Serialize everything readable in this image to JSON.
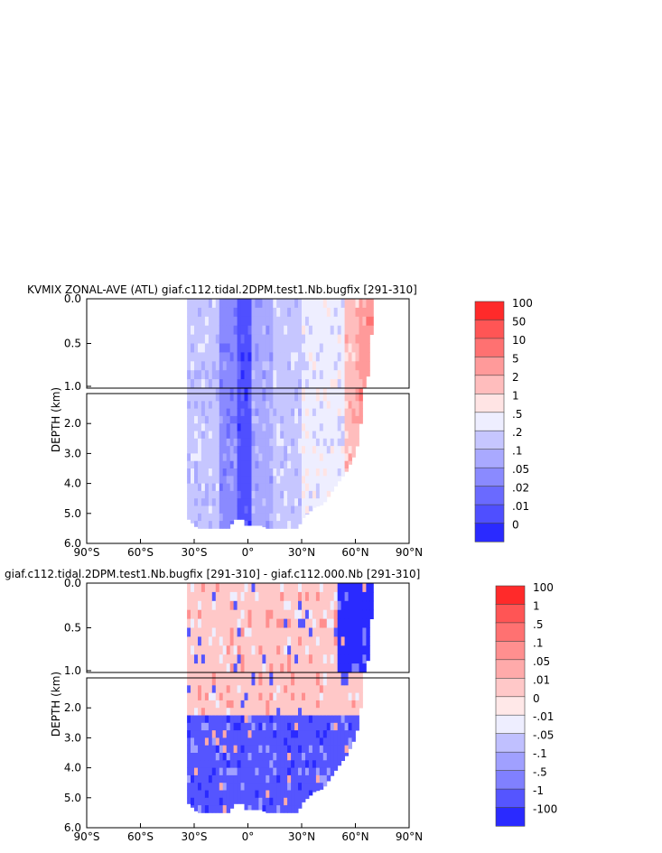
{
  "chart_data": [
    {
      "type": "heatmap",
      "title": "KVMIX ZONAL-AVE (ATL) giaf.c112.tidal.2DPM.test1.Nb.bugfix [291-310]",
      "ylabel": "DEPTH (km)",
      "xticks": [
        "90°S",
        "60°S",
        "30°S",
        "0°",
        "30°N",
        "60°N",
        "90°N"
      ],
      "yticks_upper": [
        "0.0",
        "0.5",
        "1.0"
      ],
      "yticks_lower": [
        "2.0",
        "3.0",
        "4.0",
        "5.0",
        "6.0"
      ],
      "xlim": [
        -90,
        90
      ],
      "ylim_upper_km": [
        0,
        1
      ],
      "ylim_lower_km": [
        1,
        6
      ],
      "colorbar": {
        "labels": [
          "100",
          "50",
          "10",
          "5",
          "2",
          "1",
          ".5",
          ".2",
          ".1",
          ".05",
          ".02",
          ".01",
          "0"
        ],
        "colors": [
          "#ff2a2a",
          "#ff5555",
          "#ff7171",
          "#ff9a9a",
          "#ffbdbd",
          "#ffe4e4",
          "#eeeeff",
          "#c6c6ff",
          "#a9a9ff",
          "#8a8aff",
          "#6a6aff",
          "#4f4fff",
          "#2a2aff"
        ]
      },
      "depth_profile_km": [
        [
          -33,
          5.2
        ],
        [
          -28,
          5.5
        ],
        [
          -10,
          5.5
        ],
        [
          -8,
          5.2
        ],
        [
          -3,
          5.2
        ],
        [
          -1,
          5.4
        ],
        [
          8,
          5.4
        ],
        [
          10,
          5.5
        ],
        [
          28,
          5.5
        ],
        [
          30,
          5.2
        ],
        [
          37,
          4.8
        ],
        [
          42,
          4.7
        ],
        [
          50,
          4.0
        ],
        [
          55,
          3.6
        ],
        [
          60,
          3.0
        ],
        [
          62,
          2.5
        ],
        [
          63,
          2.0
        ],
        [
          64,
          1.5
        ],
        [
          65,
          1.0
        ],
        [
          68,
          0.8
        ],
        [
          70,
          0.0
        ]
      ],
      "bands": [
        {
          "lat": [
            -35,
            -15
          ],
          "class": 7
        },
        {
          "lat": [
            -15,
            -5
          ],
          "class": 9
        },
        {
          "lat": [
            -5,
            3
          ],
          "class": 11
        },
        {
          "lat": [
            3,
            15
          ],
          "class": 8
        },
        {
          "lat": [
            15,
            30
          ],
          "class": 7
        },
        {
          "lat": [
            30,
            45
          ],
          "class": 6
        },
        {
          "lat": [
            45,
            55
          ],
          "class": 6
        },
        {
          "lat": [
            55,
            62
          ],
          "class": 4
        },
        {
          "lat": [
            62,
            70
          ],
          "class": 3
        }
      ]
    },
    {
      "type": "heatmap",
      "title": "giaf.c112.tidal.2DPM.test1.Nb.bugfix [291-310] - giaf.c112.000.Nb [291-310]",
      "ylabel": "DEPTH (km)",
      "xticks": [
        "90°S",
        "60°S",
        "30°S",
        "0°",
        "30°N",
        "60°N",
        "90°N"
      ],
      "yticks_upper": [
        "0.0",
        "0.5",
        "1.0"
      ],
      "yticks_lower": [
        "2.0",
        "3.0",
        "4.0",
        "5.0",
        "6.0"
      ],
      "xlim": [
        -90,
        90
      ],
      "ylim_upper_km": [
        0,
        1
      ],
      "ylim_lower_km": [
        1,
        6
      ],
      "colorbar": {
        "labels": [
          "100",
          "1",
          ".5",
          ".1",
          ".05",
          ".01",
          "0",
          "-.01",
          "-.05",
          "-.1",
          "-.5",
          "-1",
          "-100"
        ],
        "colors": [
          "#ff2a2a",
          "#ff5555",
          "#ff7171",
          "#ff8f8f",
          "#ffaaaa",
          "#ffc8c8",
          "#ffe8e8",
          "#eeeeff",
          "#c0c0ff",
          "#a0a0ff",
          "#8080ff",
          "#5555ff",
          "#2a2aff"
        ]
      },
      "depth_profile_km": [
        [
          -33,
          5.2
        ],
        [
          -28,
          5.5
        ],
        [
          -10,
          5.5
        ],
        [
          -8,
          5.2
        ],
        [
          -3,
          5.2
        ],
        [
          -1,
          5.4
        ],
        [
          8,
          5.4
        ],
        [
          10,
          5.5
        ],
        [
          28,
          5.5
        ],
        [
          30,
          5.2
        ],
        [
          37,
          4.8
        ],
        [
          42,
          4.7
        ],
        [
          50,
          4.0
        ],
        [
          55,
          3.6
        ],
        [
          60,
          3.0
        ],
        [
          62,
          2.5
        ],
        [
          63,
          2.0
        ],
        [
          64,
          1.5
        ],
        [
          65,
          1.0
        ],
        [
          68,
          0.8
        ],
        [
          70,
          0.0
        ]
      ],
      "bands": [
        {
          "depth": [
            0,
            2.2
          ],
          "class": 5
        },
        {
          "depth": [
            2.2,
            6.0
          ],
          "class": 11
        },
        {
          "lat": [
            50,
            70
          ],
          "depth": [
            0,
            1.0
          ],
          "class": 12
        }
      ]
    }
  ]
}
